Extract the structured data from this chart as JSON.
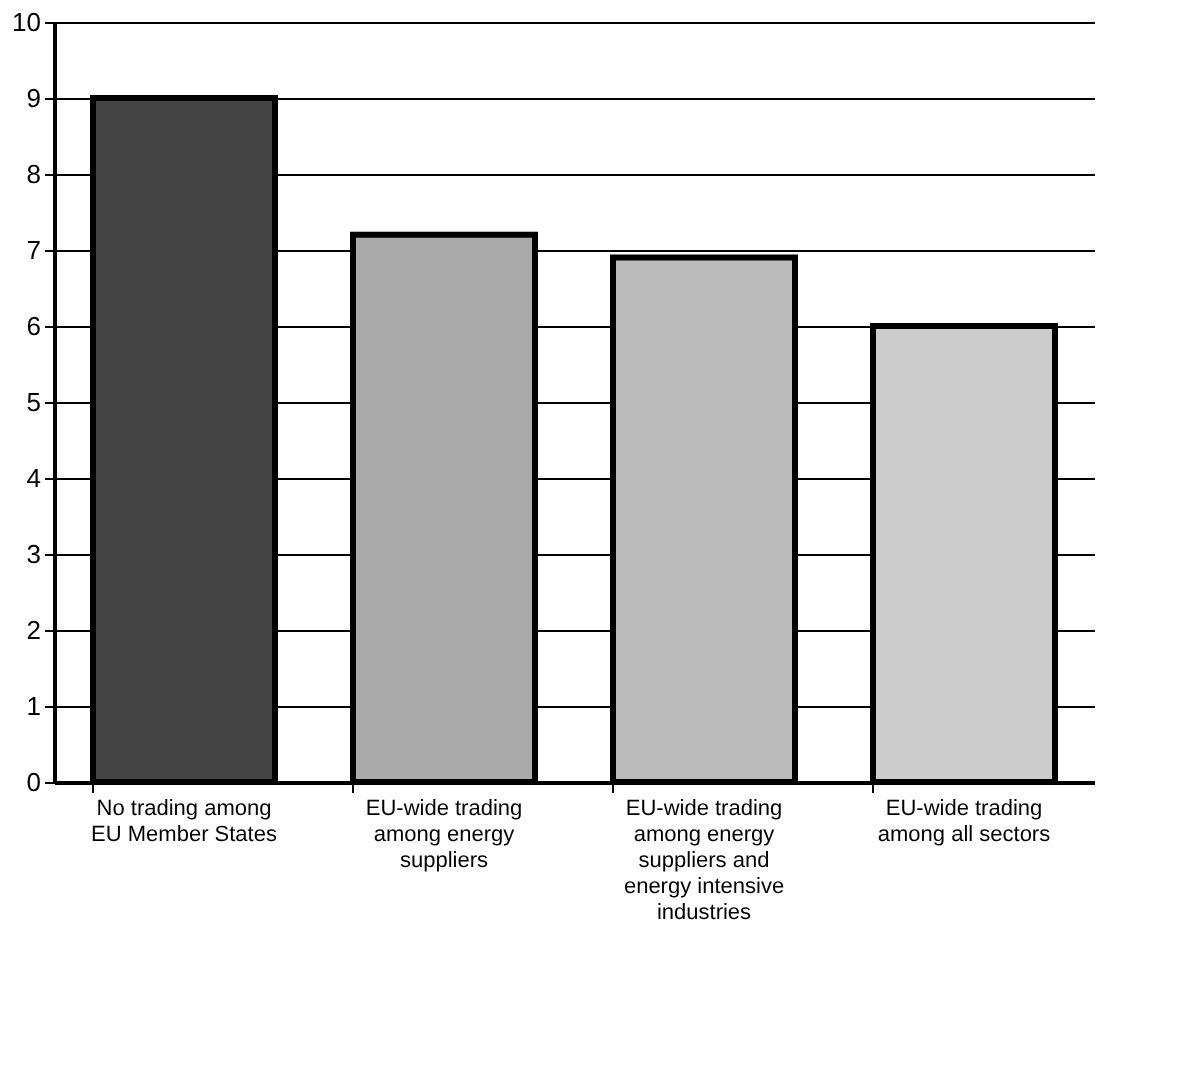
{
  "chart_data": {
    "type": "bar",
    "categories": [
      "No trading among EU Member States",
      "EU-wide trading among energy suppliers",
      "EU-wide trading among energy suppliers and energy intensive industries",
      "EU-wide trading among all sectors"
    ],
    "values": [
      9,
      7.2,
      6.9,
      6
    ],
    "colors": [
      "#444444",
      "#aaaaaa",
      "#bbbbbb",
      "#cccccc"
    ],
    "ylim": [
      0,
      10
    ],
    "yticks": [
      0,
      1,
      2,
      3,
      4,
      5,
      6,
      7,
      8,
      9,
      10
    ],
    "grid": "y"
  }
}
